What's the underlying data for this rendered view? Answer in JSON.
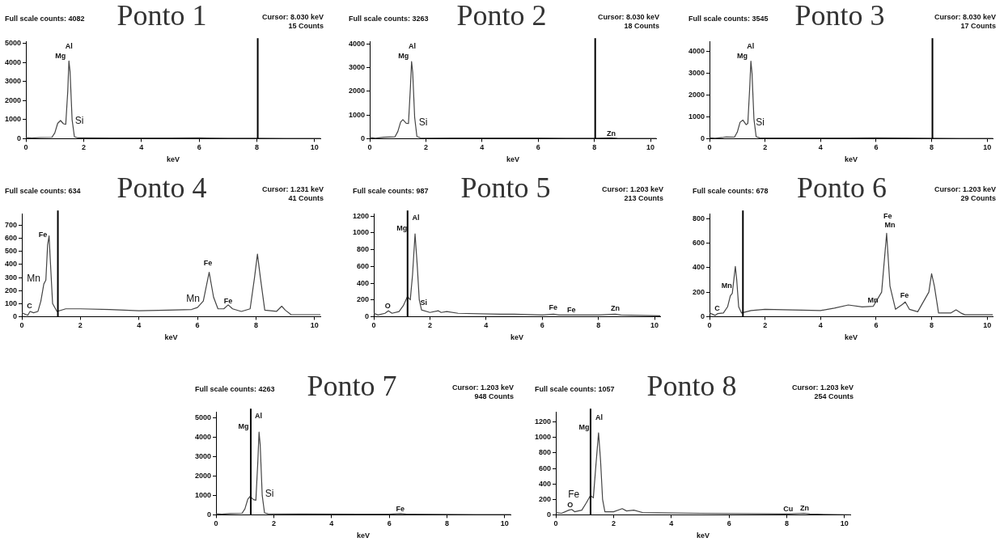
{
  "chart_data": [
    {
      "type": "line",
      "title": "Ponto 1",
      "xlabel": "keV",
      "xlim": [
        0,
        10.2
      ],
      "xticks": [
        0,
        2,
        4,
        6,
        8,
        10
      ],
      "ylim": [
        0,
        5100
      ],
      "yticks": [
        0,
        1000,
        2000,
        3000,
        4000,
        5000
      ],
      "grid": false,
      "legend": false,
      "marker": "none",
      "x": [
        0,
        0.2,
        0.5,
        0.9,
        1.0,
        1.1,
        1.2,
        1.3,
        1.38,
        1.45,
        1.49,
        1.53,
        1.6,
        1.68,
        1.8,
        3,
        5,
        6,
        7,
        8,
        9,
        10.2
      ],
      "series": [
        {
          "color": "#444444",
          "values": [
            50,
            30,
            60,
            70,
            300,
            800,
            950,
            780,
            750,
            2500,
            4080,
            3500,
            1000,
            100,
            40,
            30,
            30,
            40,
            20,
            20,
            10,
            10
          ]
        }
      ],
      "ref_lines": [
        {
          "axis": "x",
          "value": 8.03,
          "color": "#000000"
        }
      ],
      "annotations": [
        "Full scale counts: 4082",
        "Cursor: 8.030 keV",
        "15 Counts",
        "Al",
        "Mg",
        "Si"
      ]
    },
    {
      "type": "line",
      "title": "Ponto 2",
      "xlabel": "keV",
      "xlim": [
        0,
        10.2
      ],
      "xticks": [
        0,
        2,
        4,
        6,
        8,
        10
      ],
      "ylim": [
        0,
        4100
      ],
      "yticks": [
        0,
        1000,
        2000,
        3000,
        4000
      ],
      "grid": false,
      "legend": false,
      "marker": "none",
      "x": [
        0,
        0.2,
        0.5,
        0.9,
        1.0,
        1.1,
        1.18,
        1.3,
        1.38,
        1.45,
        1.49,
        1.53,
        1.6,
        1.68,
        1.8,
        3,
        5,
        6,
        7,
        8,
        8.6,
        8.8,
        10.2
      ],
      "series": [
        {
          "color": "#444444",
          "values": [
            50,
            20,
            60,
            80,
            300,
            700,
            800,
            650,
            640,
            2200,
            3250,
            2800,
            900,
            90,
            40,
            30,
            30,
            30,
            20,
            20,
            40,
            20,
            10
          ]
        }
      ],
      "ref_lines": [
        {
          "axis": "x",
          "value": 8.03,
          "color": "#000000"
        }
      ],
      "annotations": [
        "Full scale counts: 3263",
        "Cursor: 8.030 keV",
        "18 Counts",
        "Al",
        "Mg",
        "Si",
        "Zn"
      ]
    },
    {
      "type": "line",
      "title": "Ponto 3",
      "xlabel": "keV",
      "xlim": [
        0,
        10.2
      ],
      "xticks": [
        0,
        2,
        4,
        6,
        8,
        10
      ],
      "ylim": [
        0,
        4450
      ],
      "yticks": [
        0,
        1000,
        2000,
        3000,
        4000
      ],
      "grid": false,
      "legend": false,
      "marker": "none",
      "x": [
        0,
        0.2,
        0.5,
        0.6,
        0.9,
        1.0,
        1.1,
        1.2,
        1.32,
        1.38,
        1.45,
        1.49,
        1.53,
        1.6,
        1.68,
        1.8,
        3,
        5,
        6,
        7,
        8,
        9,
        10.2
      ],
      "series": [
        {
          "color": "#444444",
          "values": [
            40,
            20,
            60,
            80,
            70,
            300,
            750,
            850,
            640,
            700,
            2400,
            3550,
            3000,
            900,
            90,
            40,
            30,
            30,
            40,
            30,
            20,
            10,
            10
          ]
        }
      ],
      "ref_lines": [
        {
          "axis": "x",
          "value": 8.03,
          "color": "#000000"
        }
      ],
      "annotations": [
        "Full scale counts: 3545",
        "Cursor: 8.030 keV",
        "17 Counts",
        "Al",
        "Mg",
        "Si"
      ]
    },
    {
      "type": "line",
      "title": "Ponto 4",
      "xlabel": "keV",
      "xlim": [
        0,
        10.2
      ],
      "xticks": [
        0,
        2,
        4,
        6,
        8,
        10
      ],
      "ylim": [
        0,
        790
      ],
      "yticks": [
        0,
        100,
        200,
        300,
        400,
        500,
        600,
        700
      ],
      "grid": false,
      "legend": false,
      "marker": "none",
      "x": [
        0,
        0.1,
        0.2,
        0.28,
        0.4,
        0.55,
        0.65,
        0.75,
        0.82,
        0.88,
        0.93,
        0.98,
        1.05,
        1.2,
        1.5,
        2,
        3,
        4,
        5,
        5.8,
        6.0,
        6.2,
        6.4,
        6.55,
        6.7,
        6.9,
        7.05,
        7.2,
        7.5,
        7.8,
        7.95,
        8.05,
        8.15,
        8.3,
        8.7,
        8.88,
        9.0,
        9.2,
        10.2
      ],
      "series": [
        {
          "color": "#444444",
          "values": [
            30,
            20,
            10,
            40,
            30,
            40,
            120,
            250,
            280,
            550,
            620,
            400,
            100,
            40,
            60,
            60,
            55,
            45,
            50,
            55,
            70,
            120,
            340,
            150,
            60,
            60,
            90,
            60,
            40,
            60,
            300,
            480,
            300,
            50,
            40,
            80,
            50,
            15,
            15
          ]
        }
      ],
      "ref_lines": [
        {
          "axis": "x",
          "value": 1.231,
          "color": "#000000"
        }
      ],
      "annotations": [
        "Full scale counts: 634",
        "Cursor: 1.231 keV",
        "41 Counts",
        "Fe",
        "Mn",
        "C",
        "Fe",
        "Mn",
        "Fe"
      ]
    },
    {
      "type": "line",
      "title": "Ponto 5",
      "xlabel": "keV",
      "xlim": [
        0,
        10.2
      ],
      "xticks": [
        0,
        2,
        4,
        6,
        8,
        10
      ],
      "ylim": [
        0,
        1230
      ],
      "yticks": [
        0,
        200,
        400,
        600,
        800,
        1000,
        1200
      ],
      "grid": false,
      "legend": false,
      "marker": "none",
      "x": [
        0,
        0.15,
        0.4,
        0.52,
        0.65,
        0.9,
        1.05,
        1.2,
        1.3,
        1.38,
        1.47,
        1.55,
        1.62,
        1.7,
        2,
        2.3,
        2.4,
        2.6,
        3,
        4.5,
        5,
        6,
        6.4,
        6.6,
        8,
        8.6,
        8.8,
        10.2
      ],
      "series": [
        {
          "color": "#444444",
          "values": [
            40,
            20,
            40,
            70,
            40,
            60,
            130,
            240,
            200,
            500,
            990,
            600,
            200,
            80,
            50,
            70,
            50,
            60,
            40,
            30,
            30,
            20,
            30,
            20,
            20,
            30,
            20,
            10
          ]
        }
      ],
      "ref_lines": [
        {
          "axis": "x",
          "value": 1.203,
          "color": "#000000"
        }
      ],
      "annotations": [
        "Full scale counts: 987",
        "Cursor: 1.203 keV",
        "213 Counts",
        "O",
        "Mg",
        "Al",
        "Si",
        "Fe",
        "Fe",
        "Zn"
      ]
    },
    {
      "type": "line",
      "title": "Ponto 6",
      "xlabel": "keV",
      "xlim": [
        0,
        10.2
      ],
      "xticks": [
        0,
        2,
        4,
        6,
        8,
        10
      ],
      "ylim": [
        0,
        840
      ],
      "yticks": [
        0,
        200,
        400,
        600,
        800
      ],
      "grid": false,
      "legend": false,
      "marker": "none",
      "x": [
        0,
        0.1,
        0.2,
        0.3,
        0.5,
        0.65,
        0.75,
        0.82,
        0.9,
        0.93,
        0.98,
        1.05,
        1.15,
        1.5,
        2,
        3,
        4,
        4.5,
        5,
        5.5,
        5.9,
        6.2,
        6.38,
        6.5,
        6.7,
        6.95,
        7.05,
        7.2,
        7.5,
        7.9,
        8.0,
        8.1,
        8.25,
        8.7,
        8.88,
        9.05,
        9.2,
        10.2
      ],
      "series": [
        {
          "color": "#444444",
          "values": [
            30,
            20,
            10,
            25,
            30,
            80,
            170,
            190,
            350,
            410,
            300,
            80,
            30,
            50,
            60,
            55,
            50,
            70,
            95,
            80,
            85,
            200,
            680,
            250,
            60,
            100,
            120,
            60,
            40,
            200,
            350,
            250,
            30,
            30,
            55,
            30,
            15,
            15
          ]
        }
      ],
      "ref_lines": [
        {
          "axis": "x",
          "value": 1.203,
          "color": "#000000"
        }
      ],
      "annotations": [
        "Full scale counts: 678",
        "Cursor: 1.203 keV",
        "29 Counts",
        "C",
        "Mn",
        "Fe",
        "Mn",
        "Mn",
        "Fe"
      ]
    },
    {
      "type": "line",
      "title": "Ponto 7",
      "xlabel": "keV",
      "xlim": [
        0,
        10.2
      ],
      "xticks": [
        0,
        2,
        4,
        6,
        8,
        10
      ],
      "ylim": [
        0,
        5300
      ],
      "yticks": [
        0,
        1000,
        2000,
        3000,
        4000,
        5000
      ],
      "grid": false,
      "legend": false,
      "marker": "none",
      "x": [
        0,
        0.2,
        0.5,
        0.9,
        1.0,
        1.1,
        1.18,
        1.3,
        1.38,
        1.45,
        1.49,
        1.53,
        1.6,
        1.68,
        1.8,
        3,
        5,
        6,
        6.4,
        6.6,
        8,
        9,
        10.2
      ],
      "series": [
        {
          "color": "#444444",
          "values": [
            50,
            30,
            60,
            80,
            300,
            800,
            950,
            780,
            750,
            2800,
            4260,
            3600,
            1000,
            100,
            50,
            40,
            30,
            30,
            60,
            30,
            20,
            10,
            10
          ]
        }
      ],
      "ref_lines": [
        {
          "axis": "x",
          "value": 1.203,
          "color": "#000000"
        }
      ],
      "annotations": [
        "Full scale counts: 4263",
        "Cursor: 1.203 keV",
        "948 Counts",
        "Al",
        "Mg",
        "Si",
        "Fe"
      ]
    },
    {
      "type": "line",
      "title": "Ponto 8",
      "xlabel": "keV",
      "xlim": [
        0,
        10.2
      ],
      "xticks": [
        0,
        2,
        4,
        6,
        8,
        10
      ],
      "ylim": [
        0,
        1330
      ],
      "yticks": [
        0,
        200,
        400,
        600,
        800,
        1000,
        1200
      ],
      "grid": false,
      "legend": false,
      "marker": "none",
      "x": [
        0,
        0.2,
        0.45,
        0.55,
        0.65,
        0.9,
        1.05,
        1.2,
        1.3,
        1.38,
        1.48,
        1.55,
        1.62,
        1.7,
        2,
        2.3,
        2.45,
        2.7,
        3,
        5,
        8,
        8.6,
        8.8,
        10.2
      ],
      "series": [
        {
          "color": "#444444",
          "values": [
            30,
            20,
            60,
            70,
            40,
            60,
            150,
            250,
            220,
            600,
            1060,
            700,
            200,
            40,
            40,
            80,
            50,
            60,
            30,
            20,
            10,
            20,
            10,
            0
          ]
        }
      ],
      "ref_lines": [
        {
          "axis": "x",
          "value": 1.203,
          "color": "#000000"
        }
      ],
      "annotations": [
        "Full scale counts: 1057",
        "Cursor: 1.203 keV",
        "254 Counts",
        "Al",
        "Mg",
        "Fe",
        "O",
        "Cu",
        "Zn"
      ]
    }
  ]
}
